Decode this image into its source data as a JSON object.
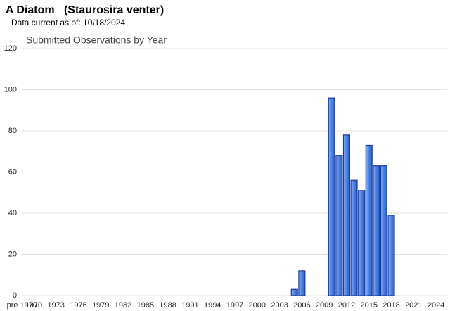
{
  "header": {
    "title": "A Diatom   (Staurosira venter)",
    "subtitle": "Data current as of: 10/18/2024"
  },
  "chart_data": {
    "type": "bar",
    "title": "Submitted Observations by Year",
    "categories": [
      "pre 1970",
      "1970",
      null,
      null,
      "1973",
      null,
      null,
      "1976",
      null,
      null,
      "1979",
      null,
      null,
      "1982",
      null,
      null,
      "1985",
      null,
      null,
      "1988",
      null,
      null,
      "1991",
      null,
      null,
      "1994",
      null,
      null,
      "1997",
      null,
      null,
      "2000",
      null,
      null,
      "2003",
      null,
      null,
      "2006",
      null,
      null,
      "2009",
      null,
      null,
      "2012",
      null,
      null,
      "2015",
      null,
      null,
      "2018",
      null,
      null,
      "2021",
      null,
      null,
      "2024",
      null
    ],
    "values": [
      0,
      0,
      0,
      0,
      0,
      0,
      0,
      0,
      0,
      0,
      0,
      0,
      0,
      0,
      0,
      0,
      0,
      0,
      0,
      0,
      0,
      0,
      0,
      0,
      0,
      0,
      0,
      0,
      0,
      0,
      0,
      0,
      0,
      0,
      0,
      0,
      3,
      12,
      0,
      0,
      0,
      96,
      68,
      78,
      56,
      51,
      73,
      63,
      63,
      39,
      0,
      0,
      0,
      0,
      0,
      0,
      0
    ],
    "color": "#4a7fe0",
    "ylim": [
      0,
      120
    ],
    "yticks": [
      0,
      20,
      40,
      60,
      80,
      100,
      120
    ],
    "grid": true
  }
}
